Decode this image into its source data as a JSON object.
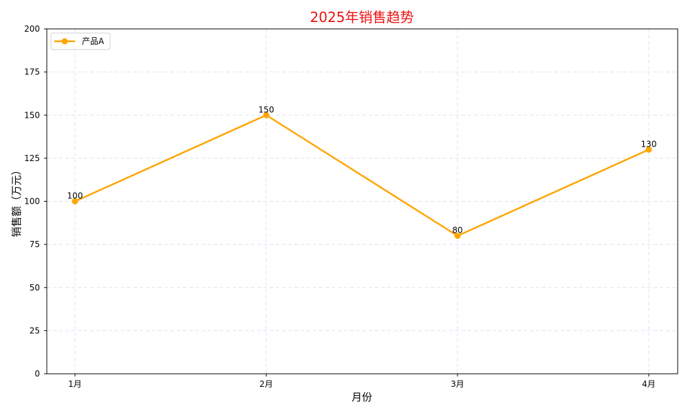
{
  "chart_data": {
    "type": "line",
    "title": "2025年销售趋势",
    "title_color": "#ee1111",
    "xlabel": "月份",
    "ylabel": "销售额（万元）",
    "categories": [
      "1月",
      "2月",
      "3月",
      "4月"
    ],
    "series": [
      {
        "name": "产品A",
        "values": [
          100,
          150,
          80,
          130
        ],
        "color": "#ffa500",
        "marker": "circle"
      }
    ],
    "data_labels": [
      "100",
      "150",
      "80",
      "130"
    ],
    "ylim": [
      0,
      200
    ],
    "yticks": [
      0,
      25,
      50,
      75,
      100,
      125,
      150,
      175,
      200
    ],
    "grid": true,
    "grid_color": "#e0e0f4",
    "legend_position": "top-left"
  }
}
